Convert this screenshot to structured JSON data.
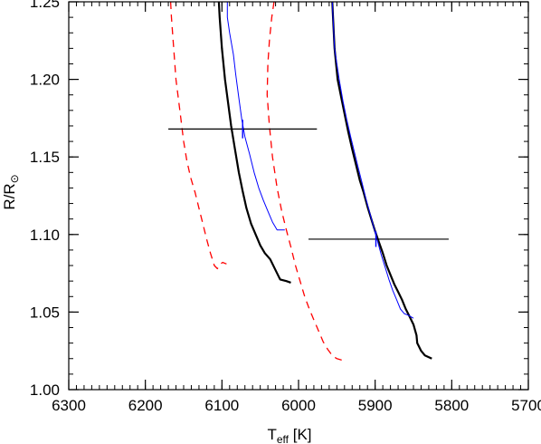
{
  "chart_data": {
    "type": "line",
    "title": "",
    "xlabel": {
      "main": "T",
      "sub": "eff",
      "unit": " [K]"
    },
    "ylabel": {
      "main": "R/R",
      "sub": "⊙"
    },
    "xlim": [
      6300,
      5700
    ],
    "ylim": [
      1.0,
      1.25
    ],
    "x_reversed": true,
    "x_ticks": [
      6300,
      6200,
      6100,
      6000,
      5900,
      5800,
      5700
    ],
    "x_tick_labels": [
      "6300",
      "6200",
      "6100",
      "6000",
      "5900",
      "5800",
      "5700"
    ],
    "x_minor_step": 10,
    "y_ticks": [
      1.0,
      1.05,
      1.1,
      1.15,
      1.2,
      1.25
    ],
    "y_tick_labels": [
      "1.00",
      "1.05",
      "1.10",
      "1.15",
      "1.20",
      "1.25"
    ],
    "y_minor_step": 0.01,
    "grid": false,
    "colors": {
      "black": "#000000",
      "red": "#ff0000",
      "blue": "#0000ff"
    },
    "series": [
      {
        "color": "#000000",
        "style": "solid",
        "width": 2.2,
        "x": [
          6104,
          6103,
          6100,
          6096,
          6092,
          6088,
          6083,
          6078,
          6073,
          6068,
          6062,
          6056,
          6050,
          6044,
          6037,
          6030,
          6025,
          6024,
          6016,
          6010
        ],
        "y": [
          1.25,
          1.24,
          1.22,
          1.2,
          1.185,
          1.17,
          1.155,
          1.14,
          1.128,
          1.117,
          1.107,
          1.1,
          1.093,
          1.088,
          1.084,
          1.077,
          1.072,
          1.071,
          1.07,
          1.069
        ]
      },
      {
        "color": "#000000",
        "style": "solid",
        "width": 2.2,
        "x": [
          5956,
          5955,
          5953,
          5949,
          5945,
          5940,
          5935,
          5930,
          5925,
          5920,
          5915,
          5910,
          5905,
          5900,
          5895,
          5890,
          5885,
          5880,
          5875,
          5870,
          5865,
          5860,
          5855,
          5850,
          5846,
          5845,
          5840,
          5835,
          5826
        ],
        "y": [
          1.25,
          1.24,
          1.22,
          1.2,
          1.19,
          1.178,
          1.166,
          1.155,
          1.145,
          1.135,
          1.127,
          1.118,
          1.11,
          1.102,
          1.095,
          1.088,
          1.08,
          1.074,
          1.068,
          1.063,
          1.058,
          1.052,
          1.047,
          1.042,
          1.035,
          1.03,
          1.025,
          1.022,
          1.02
        ]
      },
      {
        "color": "#0000ff",
        "style": "solid",
        "width": 1,
        "x": [
          6093,
          6093,
          6090,
          6085,
          6082,
          6078,
          6074,
          6070,
          6064,
          6058,
          6052,
          6046,
          6040,
          6034,
          6028,
          6022,
          6018
        ],
        "y": [
          1.25,
          1.24,
          1.23,
          1.216,
          1.203,
          1.188,
          1.174,
          1.163,
          1.152,
          1.14,
          1.13,
          1.122,
          1.115,
          1.108,
          1.103,
          1.103,
          1.103
        ]
      },
      {
        "color": "#0000ff",
        "style": "solid",
        "width": 1,
        "x": [
          5956,
          5955,
          5953,
          5947,
          5942,
          5937,
          5932,
          5927,
          5922,
          5917,
          5912,
          5907,
          5902,
          5897,
          5892,
          5887,
          5882,
          5877,
          5872,
          5867,
          5862,
          5857,
          5850
        ],
        "y": [
          1.25,
          1.24,
          1.22,
          1.2,
          1.186,
          1.174,
          1.163,
          1.153,
          1.143,
          1.133,
          1.123,
          1.114,
          1.105,
          1.096,
          1.087,
          1.079,
          1.071,
          1.064,
          1.058,
          1.052,
          1.049,
          1.048,
          1.046
        ]
      },
      {
        "color": "#ff0000",
        "style": "dashed",
        "width": 1.3,
        "x": [
          6167,
          6166,
          6163,
          6160,
          6155,
          6150,
          6146,
          6141,
          6135,
          6130,
          6125,
          6120,
          6115,
          6110,
          6106,
          6102,
          6099,
          6094
        ],
        "y": [
          1.25,
          1.24,
          1.22,
          1.2,
          1.18,
          1.16,
          1.148,
          1.137,
          1.127,
          1.117,
          1.107,
          1.097,
          1.088,
          1.08,
          1.078,
          1.081,
          1.082,
          1.081
        ]
      },
      {
        "color": "#ff0000",
        "style": "dashed",
        "width": 1.3,
        "x": [
          6032,
          6035,
          6038,
          6040,
          6041,
          6038,
          6034,
          6028,
          6022,
          6016,
          6010,
          6004,
          5998,
          5992,
          5986,
          5980,
          5974,
          5968,
          5962,
          5956,
          5950,
          5943
        ],
        "y": [
          1.25,
          1.24,
          1.225,
          1.21,
          1.19,
          1.17,
          1.15,
          1.13,
          1.115,
          1.103,
          1.092,
          1.08,
          1.07,
          1.06,
          1.052,
          1.045,
          1.038,
          1.031,
          1.026,
          1.022,
          1.02,
          1.019
        ]
      }
    ],
    "error_bars": [
      {
        "x": 6073,
        "y": 1.168,
        "x_low": 6170,
        "x_high": 5976,
        "tick_half": 0.006
      },
      {
        "x": 5899,
        "y": 1.097,
        "x_low": 5987,
        "x_high": 5804,
        "tick_half": 0.005
      }
    ]
  }
}
